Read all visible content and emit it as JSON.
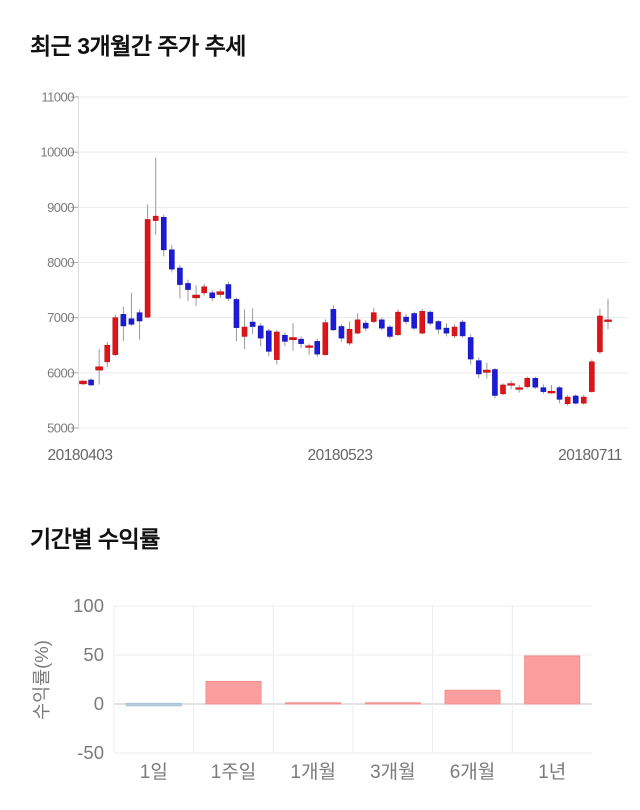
{
  "section_price": {
    "title": "최근 3개월간 주가 추세"
  },
  "section_return": {
    "title": "기간별 수익률"
  },
  "colors": {
    "candle_up": "#df1418",
    "candle_up_border": "#c21013",
    "candle_down": "#1c1cd8",
    "candle_down_border": "#1414b4",
    "wick": "#999999",
    "grid": "#ececec",
    "grid_tick": "#aaaaaa",
    "axis_line": "#dddddd",
    "zero_line": "#c6c6c6",
    "bar_positive": "#fa9e9e",
    "bar_positive_border": "#f18e8e",
    "bar_negative": "#b6cedd",
    "bar_negative_border": "#a7c2d4",
    "tick_label": "#7b7b7b",
    "date_label": "#666666",
    "title_text": "#111111"
  },
  "chart_data": [
    {
      "type": "candlestick",
      "title": "최근 3개월간 주가 추세",
      "ylim": [
        5000,
        11000
      ],
      "yticks": [
        11000,
        10000,
        9000,
        8000,
        7000,
        6000,
        5000
      ],
      "xticks": [
        "20180403",
        "20180523",
        "20180711"
      ],
      "grid": "horizontal",
      "legend": "none",
      "candle_columns": [
        "high",
        "body_top",
        "body_bottom",
        "low",
        "direction(u=up/red,d=down/blue)"
      ],
      "candles": [
        [
          5870,
          5850,
          5800,
          5780,
          "u"
        ],
        [
          5900,
          5870,
          5780,
          5760,
          "d"
        ],
        [
          6430,
          6110,
          6050,
          5790,
          "u"
        ],
        [
          6560,
          6500,
          6200,
          6100,
          "u"
        ],
        [
          7050,
          7000,
          6330,
          6300,
          "u"
        ],
        [
          7200,
          7060,
          6850,
          6580,
          "d"
        ],
        [
          7450,
          6980,
          6880,
          6850,
          "d"
        ],
        [
          7150,
          7090,
          6940,
          6600,
          "d"
        ],
        [
          9050,
          8780,
          7010,
          6990,
          "u"
        ],
        [
          9900,
          8840,
          8760,
          8500,
          "u"
        ],
        [
          8870,
          8820,
          8230,
          8110,
          "d"
        ],
        [
          8320,
          8230,
          7880,
          7820,
          "d"
        ],
        [
          7960,
          7900,
          7600,
          7350,
          "d"
        ],
        [
          7690,
          7620,
          7510,
          7300,
          "d"
        ],
        [
          7590,
          7410,
          7360,
          7210,
          "u"
        ],
        [
          7610,
          7560,
          7450,
          7400,
          "u"
        ],
        [
          7500,
          7450,
          7360,
          7300,
          "d"
        ],
        [
          7520,
          7470,
          7420,
          7370,
          "u"
        ],
        [
          7650,
          7600,
          7350,
          7300,
          "d"
        ],
        [
          7360,
          7330,
          6820,
          6570,
          "d"
        ],
        [
          7150,
          6830,
          6660,
          6430,
          "u"
        ],
        [
          7170,
          6920,
          6840,
          6700,
          "d"
        ],
        [
          6900,
          6850,
          6630,
          6480,
          "d"
        ],
        [
          6800,
          6760,
          6390,
          6300,
          "d"
        ],
        [
          6780,
          6740,
          6240,
          6150,
          "u"
        ],
        [
          6730,
          6680,
          6570,
          6480,
          "d"
        ],
        [
          6900,
          6640,
          6600,
          6400,
          "u"
        ],
        [
          6660,
          6610,
          6530,
          6450,
          "d"
        ],
        [
          6530,
          6490,
          6460,
          6330,
          "u"
        ],
        [
          6620,
          6570,
          6340,
          6290,
          "d"
        ],
        [
          6970,
          6910,
          6330,
          6310,
          "u"
        ],
        [
          7230,
          7150,
          6780,
          6760,
          "d"
        ],
        [
          6880,
          6840,
          6630,
          6560,
          "d"
        ],
        [
          6930,
          6790,
          6540,
          6500,
          "u"
        ],
        [
          7080,
          6960,
          6720,
          6700,
          "u"
        ],
        [
          6950,
          6900,
          6810,
          6760,
          "d"
        ],
        [
          7180,
          7090,
          6930,
          6900,
          "u"
        ],
        [
          7000,
          6960,
          6810,
          6770,
          "d"
        ],
        [
          6870,
          6830,
          6660,
          6620,
          "d"
        ],
        [
          7150,
          7100,
          6690,
          6670,
          "u"
        ],
        [
          7070,
          7010,
          6930,
          6880,
          "d"
        ],
        [
          7110,
          7075,
          6810,
          6780,
          "d"
        ],
        [
          7160,
          7115,
          6720,
          6700,
          "u"
        ],
        [
          7130,
          7100,
          6900,
          6860,
          "d"
        ],
        [
          6960,
          6930,
          6790,
          6700,
          "d"
        ],
        [
          6900,
          6810,
          6720,
          6660,
          "d"
        ],
        [
          6880,
          6830,
          6670,
          6630,
          "u"
        ],
        [
          6960,
          6920,
          6670,
          6640,
          "d"
        ],
        [
          6700,
          6640,
          6250,
          6150,
          "d"
        ],
        [
          6280,
          6220,
          5980,
          5900,
          "d"
        ],
        [
          6180,
          6050,
          6010,
          5900,
          "u"
        ],
        [
          6090,
          6060,
          5590,
          5540,
          "d"
        ],
        [
          5810,
          5780,
          5620,
          5590,
          "u"
        ],
        [
          5860,
          5805,
          5775,
          5700,
          "u"
        ],
        [
          5780,
          5730,
          5705,
          5640,
          "u"
        ],
        [
          5930,
          5900,
          5750,
          5720,
          "u"
        ],
        [
          5930,
          5900,
          5740,
          5710,
          "d"
        ],
        [
          5790,
          5730,
          5660,
          5620,
          "d"
        ],
        [
          5780,
          5665,
          5635,
          5620,
          "u"
        ],
        [
          5760,
          5730,
          5520,
          5450,
          "d"
        ],
        [
          5600,
          5560,
          5440,
          5410,
          "u"
        ],
        [
          5610,
          5580,
          5450,
          5430,
          "d"
        ],
        [
          5600,
          5560,
          5450,
          5420,
          "u"
        ],
        [
          6240,
          6200,
          5660,
          5640,
          "u"
        ],
        [
          7160,
          7030,
          6380,
          6340,
          "u"
        ],
        [
          7340,
          6960,
          6930,
          6790,
          "u"
        ]
      ]
    },
    {
      "type": "bar",
      "title": "기간별 수익률",
      "ylabel": "수익률(%)",
      "ylim": [
        -75,
        115
      ],
      "yticks": [
        100,
        50,
        0,
        -50
      ],
      "grid": "both",
      "legend": "none",
      "categories": [
        "1일",
        "1주일",
        "1개월",
        "3개월",
        "6개월",
        "1년"
      ],
      "values": [
        -0.2,
        23,
        1,
        0.2,
        14,
        49
      ]
    }
  ]
}
